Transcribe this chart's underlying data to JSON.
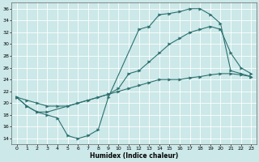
{
  "xlabel": "Humidex (Indice chaleur)",
  "bg_color": "#cce8e8",
  "grid_color": "#ffffff",
  "line_color": "#2d7070",
  "xlim": [
    -0.5,
    23.5
  ],
  "ylim": [
    13,
    37
  ],
  "yticks": [
    14,
    16,
    18,
    20,
    22,
    24,
    26,
    28,
    30,
    32,
    34,
    36
  ],
  "xticks": [
    0,
    1,
    2,
    3,
    4,
    5,
    6,
    7,
    8,
    9,
    10,
    11,
    12,
    13,
    14,
    15,
    16,
    17,
    18,
    19,
    20,
    21,
    22,
    23
  ],
  "line1_x": [
    0,
    1,
    2,
    3,
    4,
    5,
    6,
    7,
    8,
    9,
    12,
    13,
    14,
    15,
    16,
    17,
    18,
    19,
    20,
    21,
    22,
    23
  ],
  "line1_y": [
    21,
    19.5,
    18.5,
    18,
    17.5,
    14.5,
    14.0,
    14.5,
    15.5,
    21,
    32.5,
    33,
    35,
    35.2,
    35.5,
    36,
    36,
    35,
    33.5,
    25.5,
    25,
    24.5
  ],
  "line2_x": [
    0,
    1,
    2,
    3,
    9,
    10,
    11,
    12,
    13,
    14,
    15,
    16,
    17,
    18,
    19,
    20,
    21,
    22,
    23
  ],
  "line2_y": [
    21,
    19.5,
    18.5,
    18.5,
    21.5,
    22.5,
    25,
    25.5,
    27,
    28.5,
    30,
    31,
    32,
    32.5,
    33,
    32.5,
    28.5,
    26,
    25
  ],
  "line3_x": [
    0,
    1,
    2,
    3,
    4,
    5,
    6,
    7,
    8,
    9,
    10,
    11,
    12,
    13,
    14,
    15,
    16,
    17,
    18,
    19,
    20,
    21,
    22,
    23
  ],
  "line3_y": [
    21,
    20.5,
    20.0,
    19.5,
    19.5,
    19.5,
    20.0,
    20.5,
    21.0,
    21.5,
    22.0,
    22.5,
    23.0,
    23.5,
    24.0,
    24.0,
    24.0,
    24.3,
    24.5,
    24.8,
    25.0,
    25.0,
    24.8,
    24.5
  ]
}
